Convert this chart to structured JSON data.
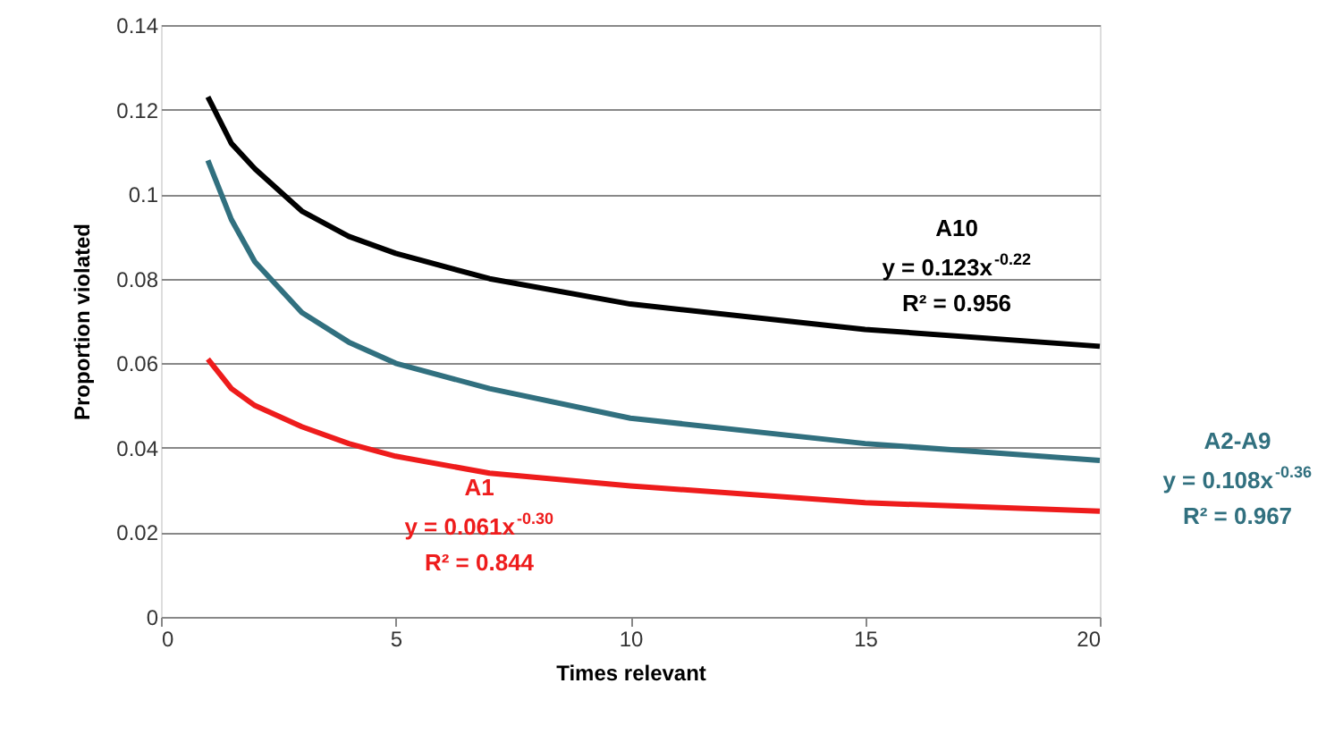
{
  "chart_data": {
    "type": "line",
    "xlabel": "Times relevant",
    "ylabel": "Proportion violated",
    "x": [
      1,
      1.5,
      2,
      3,
      4,
      5,
      7,
      10,
      15,
      20
    ],
    "series": [
      {
        "name": "A10",
        "color": "#000000",
        "values": [
          0.123,
          0.112,
          0.106,
          0.096,
          0.09,
          0.086,
          0.08,
          0.074,
          0.068,
          0.064
        ]
      },
      {
        "name": "A2-A9",
        "color": "#31707f",
        "values": [
          0.108,
          0.094,
          0.084,
          0.072,
          0.065,
          0.06,
          0.054,
          0.047,
          0.041,
          0.037
        ]
      },
      {
        "name": "A1",
        "color": "#ee1c1c",
        "values": [
          0.061,
          0.054,
          0.05,
          0.045,
          0.041,
          0.038,
          0.034,
          0.031,
          0.027,
          0.025
        ]
      }
    ],
    "annotations": [
      "y = 0.123x$^{-0.22}$",
      "R² = 0.956",
      "y = 0.108x$^{-0.36}$",
      "R² = 0.967",
      "y = 0.061x$^{-0.30}$",
      "R² = 0.844"
    ],
    "xlim": [
      0,
      20
    ],
    "xticks": [
      0,
      5,
      10,
      15,
      20
    ],
    "ylim": [
      0,
      0.14
    ],
    "yticks": [
      0,
      0.02,
      0.04,
      0.06,
      0.08,
      0.1,
      0.12,
      0.14
    ],
    "grid": "y",
    "marker": "none",
    "line_style": "solid"
  }
}
